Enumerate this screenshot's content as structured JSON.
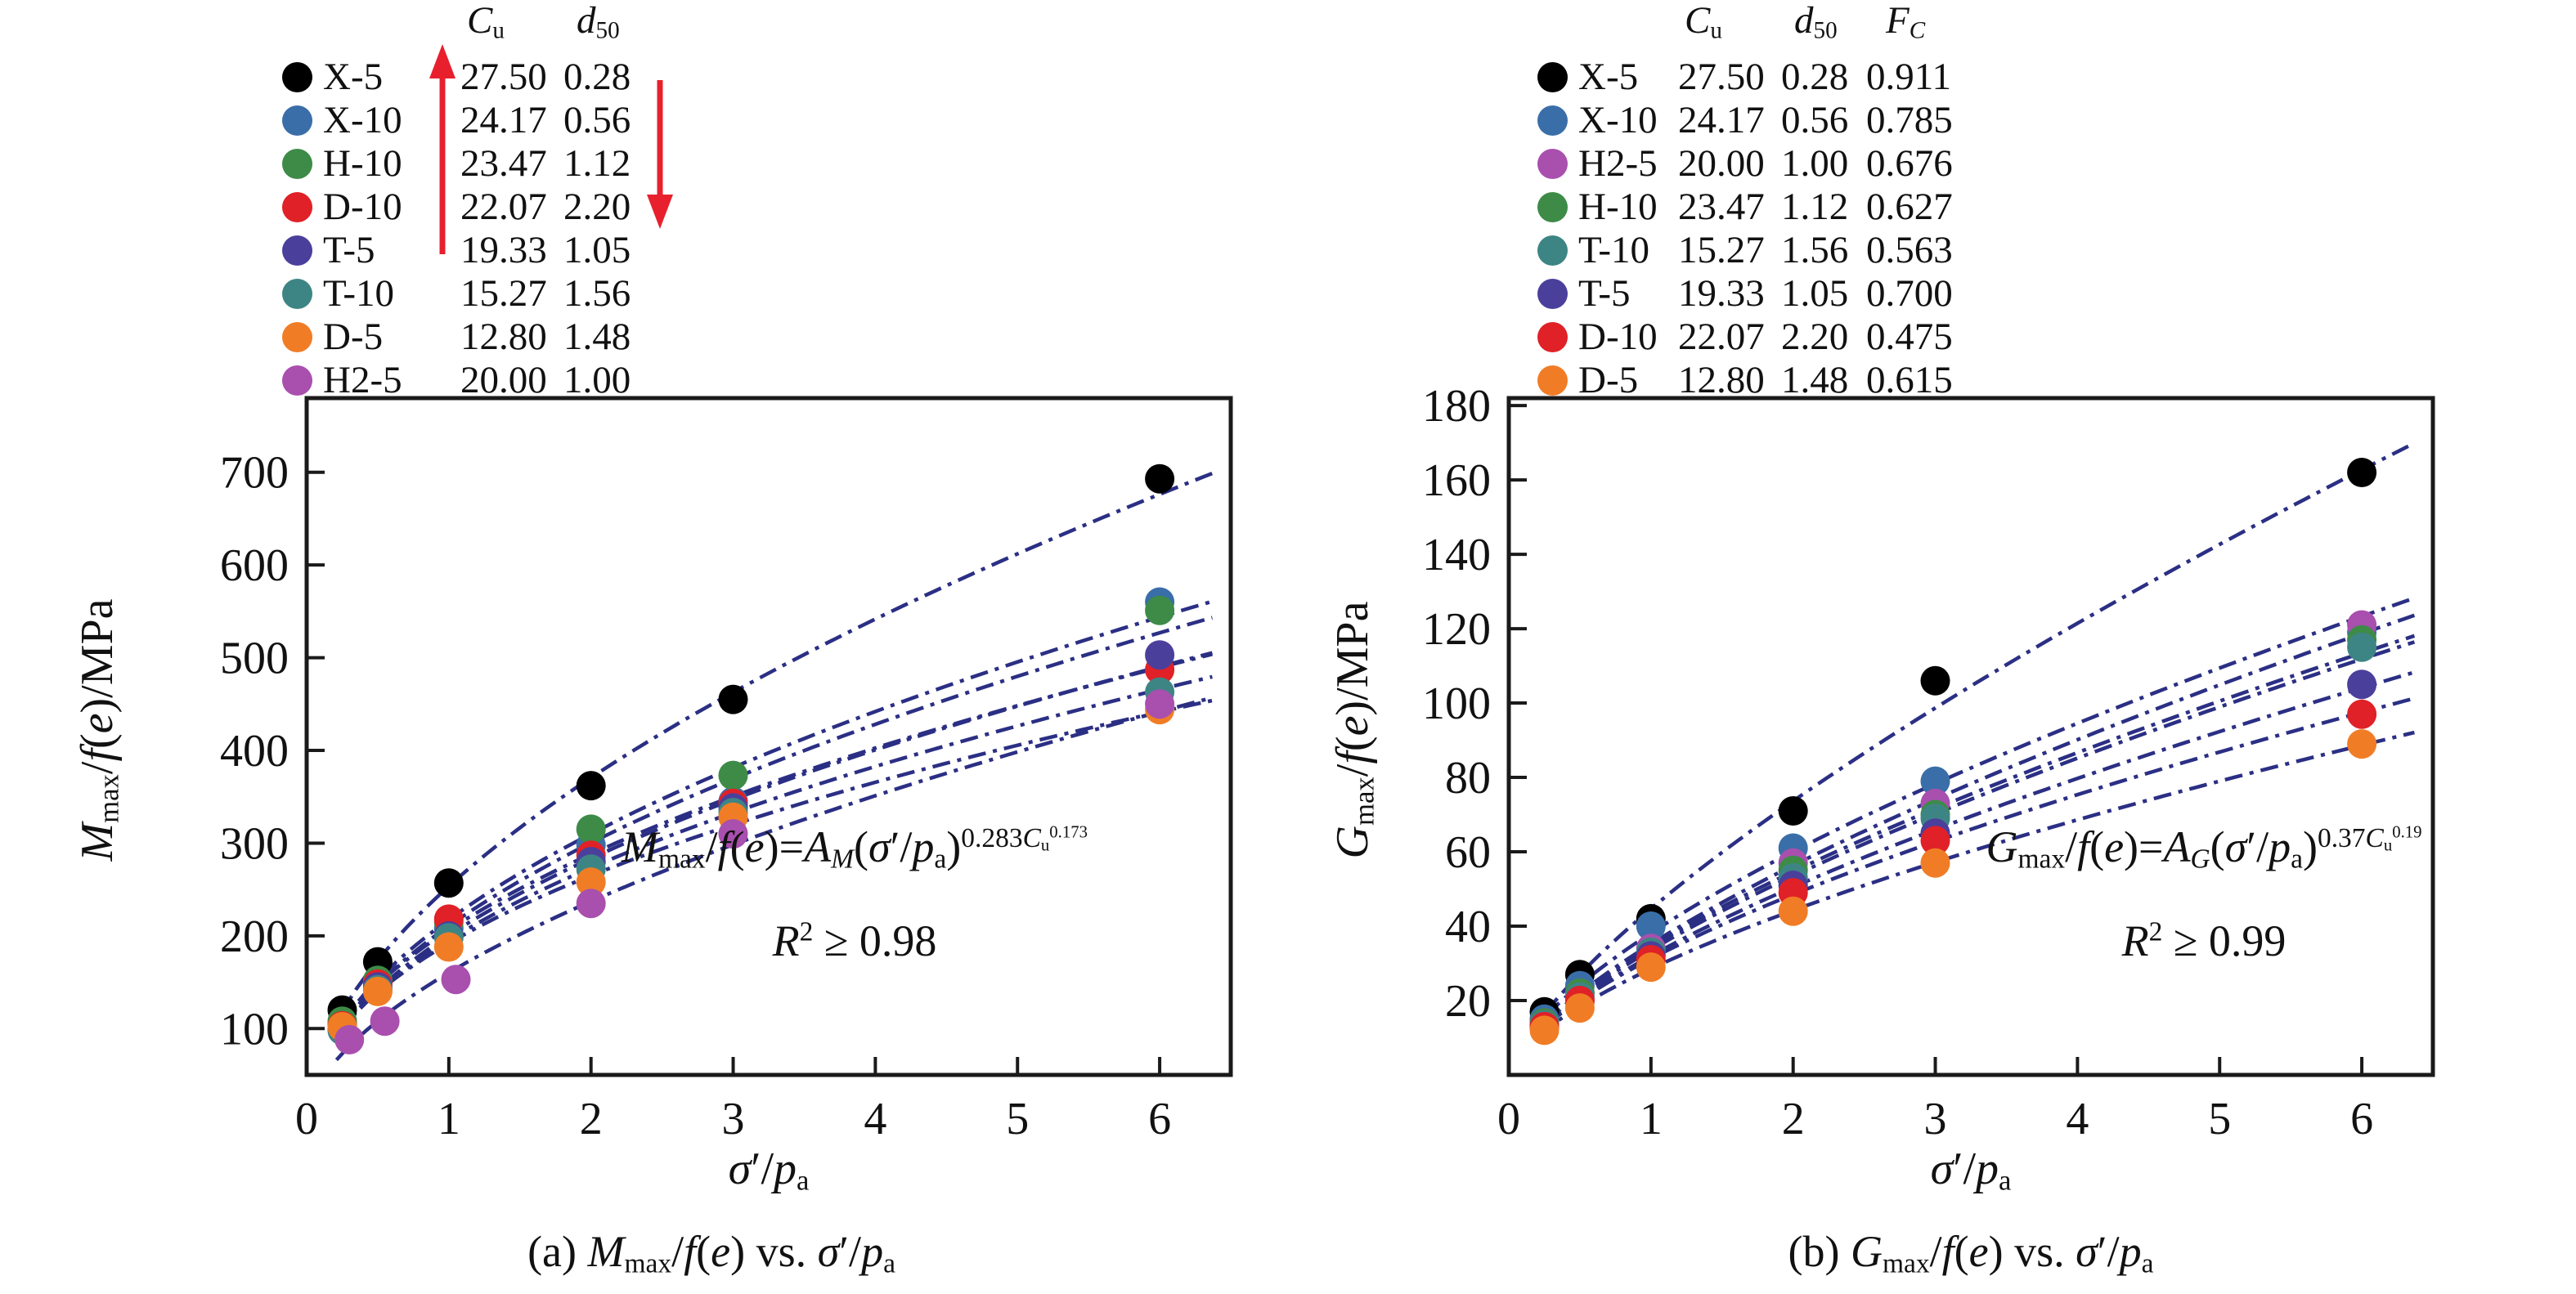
{
  "colors": {
    "curve_navy": "#2b2f84",
    "arrow_red": "#e8202d",
    "axis_black": "#1a1a1a"
  },
  "series_colors": {
    "X-5": "#000000",
    "X-10": "#3a6ea8",
    "H-10": "#3d8b47",
    "D-10": "#e02127",
    "T-5": "#4b3f9c",
    "T-10": "#3d8585",
    "D-5": "#f07d26",
    "H2-5": "#a94fae"
  },
  "legends": [
    {
      "panel": "a",
      "headers": [
        {
          "key": "cu",
          "html": "<i>C</i><sub>u</sub>"
        },
        {
          "key": "d50",
          "html": "<i>d</i><sub>50</sub>"
        }
      ],
      "rows": [
        {
          "label": "X-5",
          "cu": "27.50",
          "d50": "0.28"
        },
        {
          "label": "X-10",
          "cu": "24.17",
          "d50": "0.56"
        },
        {
          "label": "H-10",
          "cu": "23.47",
          "d50": "1.12"
        },
        {
          "label": "D-10",
          "cu": "22.07",
          "d50": "2.20"
        },
        {
          "label": "T-5",
          "cu": "19.33",
          "d50": "1.05"
        },
        {
          "label": "T-10",
          "cu": "15.27",
          "d50": "1.56"
        },
        {
          "label": "D-5",
          "cu": "12.80",
          "d50": "1.48"
        },
        {
          "label": "H2-5",
          "cu": "20.00",
          "d50": "1.00"
        }
      ],
      "arrows": [
        {
          "name": "cu-increase-arrow",
          "direction": "up"
        },
        {
          "name": "d50-decrease-arrow",
          "direction": "down"
        }
      ]
    },
    {
      "panel": "b",
      "headers": [
        {
          "key": "cu",
          "html": "<i>C</i><sub>u</sub>"
        },
        {
          "key": "d50",
          "html": "<i>d</i><sub>50</sub>"
        },
        {
          "key": "fc",
          "html": "<i>F<sub>C</sub></i>"
        }
      ],
      "rows": [
        {
          "label": "X-5",
          "cu": "27.50",
          "d50": "0.28",
          "fc": "0.911"
        },
        {
          "label": "X-10",
          "cu": "24.17",
          "d50": "0.56",
          "fc": "0.785"
        },
        {
          "label": "H2-5",
          "cu": "20.00",
          "d50": "1.00",
          "fc": "0.676"
        },
        {
          "label": "H-10",
          "cu": "23.47",
          "d50": "1.12",
          "fc": "0.627"
        },
        {
          "label": "T-10",
          "cu": "15.27",
          "d50": "1.56",
          "fc": "0.563"
        },
        {
          "label": "T-5",
          "cu": "19.33",
          "d50": "1.05",
          "fc": "0.700"
        },
        {
          "label": "D-10",
          "cu": "22.07",
          "d50": "2.20",
          "fc": "0.475"
        },
        {
          "label": "D-5",
          "cu": "12.80",
          "d50": "1.48",
          "fc": "0.615"
        }
      ],
      "arrows": []
    }
  ],
  "panels": [
    {
      "id": "a",
      "xlabel_html": "<i>σ</i>′/<i>p</i><sub>a</sub>",
      "ylabel_html": "<i>M</i><sub>max</sub>/<i>f</i>(<i>e</i>)/MPa",
      "caption_html": "(a) <i>M</i><sub>max</sub>/<i>f</i>(<i>e</i>) vs. <i>σ</i>′/<i>p</i><sub>a</sub>",
      "equation_html": "<i>M</i><sub>max</sub>/<i>f</i>(<i>e</i>)=<i>A<sub>M</sub></i>(<i>σ</i>′/<i>p</i><sub>a</sub>)<sup>0.283<i>C</i><sub>u</sub><sup>0.173</sup></sup>",
      "r2_html": "<i>R</i><sup>2</sup> ≥ 0.98"
    },
    {
      "id": "b",
      "xlabel_html": "<i>σ</i>′/<i>p</i><sub>a</sub>",
      "ylabel_html": "<i>G</i><sub>max</sub>/<i>f</i>(<i>e</i>)/MPa",
      "caption_html": "(b) <i>G</i><sub>max</sub>/<i>f</i>(<i>e</i>) vs. <i>σ</i>′/<i>p</i><sub>a</sub>",
      "equation_html": "<i>G</i><sub>max</sub>/<i>f</i>(<i>e</i>)=<i>A<sub>G</sub></i>(<i>σ</i>′/<i>p</i><sub>a</sub>)<sup>0.37<i>C</i><sub>u</sub><sup>0.19</sup></sup>",
      "r2_html": "<i>R</i><sup>2</sup> ≥ 0.99"
    }
  ],
  "chart_data": [
    {
      "type": "scatter",
      "panel": "a",
      "title": "(a) Mmax/f(e) vs. σ'/pa",
      "xlabel": "σ'/pa",
      "ylabel": "Mmax/f(e)/MPa",
      "equation": "Mmax/f(e)=AM(σ'/pa)^(0.283Cu^0.173)",
      "r2": "R2 >= 0.98",
      "fit_style": "power-law dash-dot navy curves",
      "grid": false,
      "x": [
        0.25,
        0.5,
        1,
        2,
        3,
        6
      ],
      "xlim": [
        0,
        6.5
      ],
      "ylim": [
        50,
        780
      ],
      "xticks": [
        0,
        1,
        2,
        3,
        4,
        5,
        6
      ],
      "yticks": [
        100,
        200,
        300,
        400,
        500,
        600,
        700
      ],
      "series": [
        {
          "name": "X-5",
          "values": [
            120,
            172,
            257,
            362,
            455,
            693
          ]
        },
        {
          "name": "X-10",
          "values": [
            105,
            150,
            208,
            298,
            345,
            560
          ]
        },
        {
          "name": "H-10",
          "values": [
            108,
            152,
            215,
            315,
            373,
            551
          ]
        },
        {
          "name": "D-10",
          "values": [
            103,
            148,
            218,
            287,
            343,
            487
          ]
        },
        {
          "name": "T-5",
          "values": [
            100,
            145,
            200,
            280,
            338,
            503
          ]
        },
        {
          "name": "T-10",
          "values": [
            98,
            142,
            198,
            272,
            333,
            463
          ]
        },
        {
          "name": "D-5",
          "values": [
            102,
            140,
            188,
            258,
            328,
            444
          ]
        },
        {
          "name": "H2-5",
          "x": [
            0.3,
            0.55,
            1.05,
            2,
            3,
            6
          ],
          "values": [
            88,
            108,
            153,
            235,
            310,
            450
          ]
        }
      ]
    },
    {
      "type": "scatter",
      "panel": "b",
      "title": "(b) Gmax/f(e) vs. σ'/pa",
      "xlabel": "σ'/pa",
      "ylabel": "Gmax/f(e)/MPa",
      "equation": "Gmax/f(e)=AG(σ'/pa)^(0.37Cu^0.19)",
      "r2": "R2 >= 0.99",
      "fit_style": "power-law dash-dot navy curves",
      "grid": false,
      "x": [
        0.25,
        0.5,
        1,
        2,
        3,
        6
      ],
      "xlim": [
        0,
        6.5
      ],
      "ylim": [
        0,
        182
      ],
      "xticks": [
        0,
        1,
        2,
        3,
        4,
        5,
        6
      ],
      "yticks": [
        20,
        40,
        60,
        80,
        100,
        120,
        140,
        160,
        180
      ],
      "series": [
        {
          "name": "X-5",
          "values": [
            17,
            27,
            42,
            71,
            106,
            162
          ]
        },
        {
          "name": "X-10",
          "values": [
            15,
            24,
            40,
            61,
            79,
            119
          ]
        },
        {
          "name": "H2-5",
          "values": [
            14,
            22,
            34,
            57,
            73,
            121
          ]
        },
        {
          "name": "H-10",
          "values": [
            14,
            22,
            33,
            55,
            70,
            117
          ]
        },
        {
          "name": "T-10",
          "values": [
            13.5,
            21,
            33,
            53,
            69,
            115
          ]
        },
        {
          "name": "T-5",
          "values": [
            13,
            20,
            32,
            51,
            65,
            105
          ]
        },
        {
          "name": "D-10",
          "values": [
            13,
            20,
            31,
            49,
            63,
            97
          ]
        },
        {
          "name": "D-5",
          "values": [
            12,
            18,
            29,
            44,
            57,
            89
          ]
        }
      ]
    }
  ]
}
